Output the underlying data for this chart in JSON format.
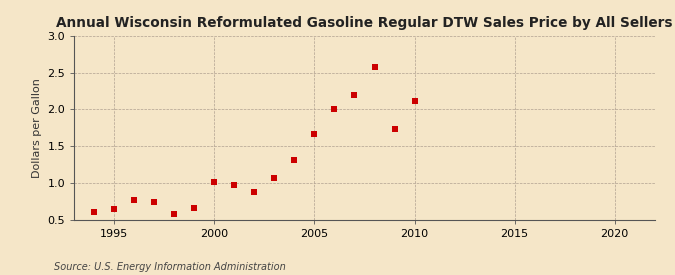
{
  "title": "Annual Wisconsin Reformulated Gasoline Regular DTW Sales Price by All Sellers",
  "ylabel": "Dollars per Gallon",
  "source": "Source: U.S. Energy Information Administration",
  "background_color": "#f5e6c8",
  "marker_color": "#cc0000",
  "xlim": [
    1993,
    2022
  ],
  "ylim": [
    0.5,
    3.0
  ],
  "xticks": [
    1995,
    2000,
    2005,
    2010,
    2015,
    2020
  ],
  "yticks": [
    0.5,
    1.0,
    1.5,
    2.0,
    2.5,
    3.0
  ],
  "years": [
    1994,
    1995,
    1996,
    1997,
    1998,
    1999,
    2000,
    2001,
    2002,
    2003,
    2004,
    2005,
    2006,
    2007,
    2008,
    2009,
    2010
  ],
  "values": [
    0.61,
    0.65,
    0.77,
    0.74,
    0.58,
    0.66,
    1.01,
    0.97,
    0.88,
    1.07,
    1.32,
    1.67,
    2.0,
    2.19,
    2.57,
    1.74,
    2.12
  ],
  "title_fontsize": 9.8,
  "ylabel_fontsize": 8,
  "tick_labelsize": 8,
  "source_fontsize": 7,
  "marker_size": 16
}
